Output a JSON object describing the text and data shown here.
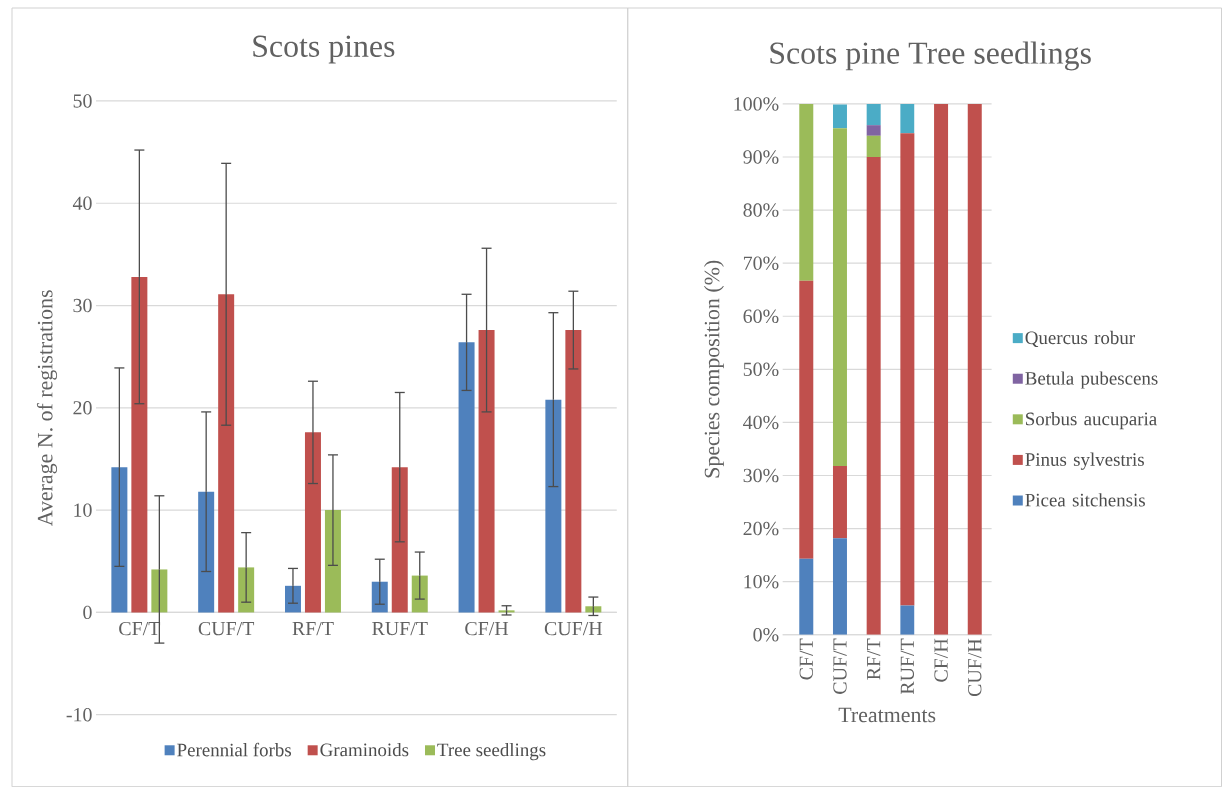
{
  "chart_data": [
    {
      "type": "bar",
      "title": "Scots pines",
      "ylabel": "Average N. of registrations",
      "categories": [
        "CF/T",
        "CUF/T",
        "RF/T",
        "RUF/T",
        "CF/H",
        "CUF/H"
      ],
      "series": [
        {
          "name": "Perennial forbs",
          "color": "#4f81bd",
          "values": [
            14.2,
            11.8,
            2.6,
            3.0,
            26.4,
            20.8
          ],
          "errors": [
            9.7,
            7.8,
            1.7,
            2.2,
            4.7,
            8.5
          ]
        },
        {
          "name": "Graminoids",
          "color": "#c0504d",
          "values": [
            32.8,
            31.1,
            17.6,
            14.2,
            27.6,
            27.6
          ],
          "errors": [
            12.4,
            12.8,
            5.0,
            7.3,
            8.0,
            3.8
          ]
        },
        {
          "name": "Tree seedlings",
          "color": "#9bbb59",
          "values": [
            4.2,
            4.4,
            10.0,
            3.6,
            0.2,
            0.6
          ],
          "errors": [
            7.2,
            3.4,
            5.4,
            2.3,
            0.45,
            0.9
          ]
        }
      ],
      "ylim": [
        -10,
        50
      ],
      "yticks": [
        -10,
        0,
        10,
        20,
        30,
        40,
        50
      ],
      "grid": "y",
      "legend": "bottom"
    },
    {
      "type": "bar",
      "stacked": true,
      "title": "Scots pine Tree seedlings",
      "xlabel": "Treatments",
      "ylabel": "Species composition (%)",
      "categories": [
        "CF/T",
        "CUF/T",
        "RF/T",
        "RUF/T",
        "CF/H",
        "CUF/H"
      ],
      "series": [
        {
          "name": "Picea sitchensis",
          "color": "#4f81bd",
          "values": [
            14.3,
            18.2,
            0,
            5.5,
            0,
            0
          ]
        },
        {
          "name": "Pinus sylvestris",
          "color": "#c0504d",
          "values": [
            52.4,
            13.6,
            90,
            89,
            100,
            100
          ]
        },
        {
          "name": "Sorbus aucuparia",
          "color": "#9bbb59",
          "values": [
            33.3,
            63.6,
            4,
            0,
            0,
            0
          ]
        },
        {
          "name": "Betula pubescens",
          "color": "#8064a2",
          "values": [
            0,
            0,
            2,
            0,
            0,
            0
          ]
        },
        {
          "name": "Quercus robur",
          "color": "#4bacc6",
          "values": [
            0,
            4.5,
            4,
            5.5,
            0,
            0
          ]
        }
      ],
      "ylim": [
        0,
        100
      ],
      "yticks": [
        {
          "value": 0,
          "label": "0%"
        },
        {
          "value": 10,
          "label": "10%"
        },
        {
          "value": 20,
          "label": "20%"
        },
        {
          "value": 30,
          "label": "30%"
        },
        {
          "value": 40,
          "label": "40%"
        },
        {
          "value": 50,
          "label": "50%"
        },
        {
          "value": 60,
          "label": "60%"
        },
        {
          "value": 70,
          "label": "70%"
        },
        {
          "value": 80,
          "label": "80%"
        },
        {
          "value": 90,
          "label": "90%"
        },
        {
          "value": 100,
          "label": "100%"
        }
      ],
      "grid": "y",
      "legend": "right"
    }
  ]
}
